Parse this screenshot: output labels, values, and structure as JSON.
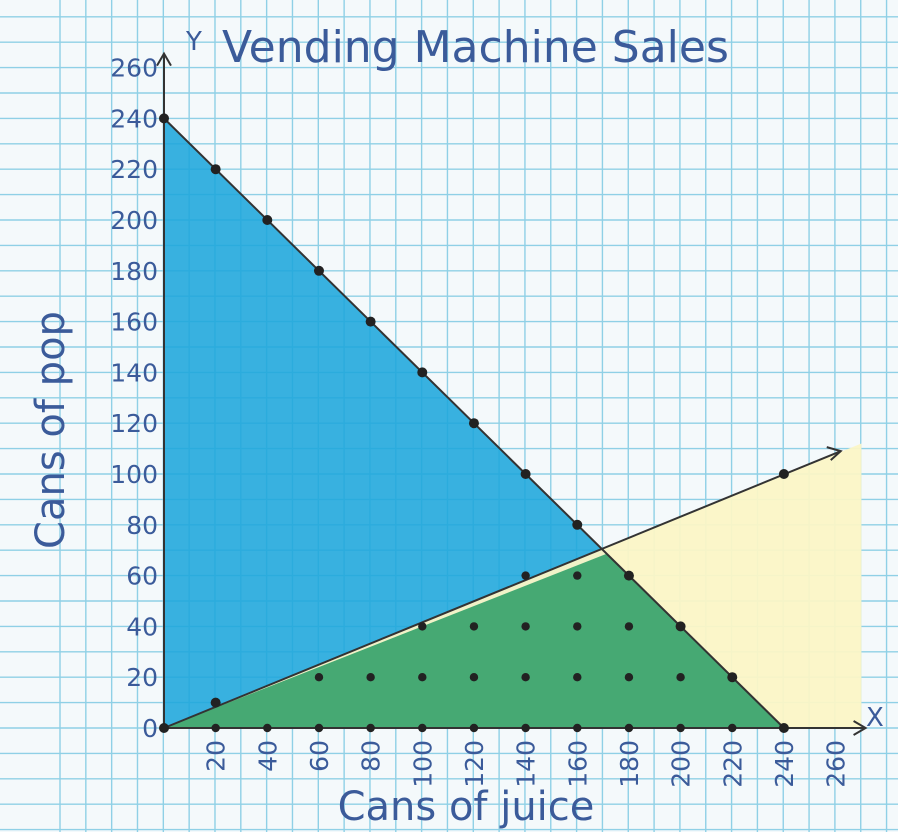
{
  "chart_data": {
    "type": "line",
    "title": "Vending Machine Sales",
    "xlabel": "Cans of juice",
    "ylabel": "Cans of pop",
    "x_axis_letter": "X",
    "y_axis_letter": "Y",
    "xlim": [
      0,
      260
    ],
    "ylim": [
      0,
      260
    ],
    "x_ticks": [
      "20",
      "40",
      "60",
      "80",
      "100",
      "120",
      "140",
      "160",
      "180",
      "200",
      "220",
      "240",
      "260"
    ],
    "y_ticks": [
      "0",
      "20",
      "40",
      "60",
      "80",
      "100",
      "120",
      "140",
      "160",
      "180",
      "200",
      "220",
      "240",
      "260"
    ],
    "grid": true,
    "series": [
      {
        "values": [
          [
            0,
            240
          ],
          [
            20,
            220
          ],
          [
            40,
            200
          ],
          [
            60,
            180
          ],
          [
            80,
            160
          ],
          [
            100,
            140
          ],
          [
            120,
            120
          ],
          [
            140,
            100
          ],
          [
            160,
            80
          ],
          [
            180,
            60
          ],
          [
            200,
            40
          ],
          [
            220,
            20
          ],
          [
            240,
            0
          ]
        ],
        "color": "#333333"
      },
      {
        "values": [
          [
            0,
            0
          ],
          [
            20,
            10
          ],
          [
            240,
            100
          ]
        ],
        "color": "#333333"
      }
    ],
    "regions": [
      {
        "vertices": [
          [
            0,
            0
          ],
          [
            0,
            240
          ],
          [
            240,
            0
          ]
        ],
        "color": "#1ea6dc"
      },
      {
        "vertices": [
          [
            0,
            0
          ],
          [
            270,
            112
          ],
          [
            270,
            0
          ]
        ],
        "color": "#fbf6c6"
      },
      {
        "vertices": [
          [
            0,
            0
          ],
          [
            171.4,
            68.6
          ],
          [
            240,
            0
          ]
        ],
        "color": "#2e9e66"
      }
    ],
    "lattice_points": [
      [
        20,
        0
      ],
      [
        40,
        0
      ],
      [
        60,
        0
      ],
      [
        80,
        0
      ],
      [
        100,
        0
      ],
      [
        120,
        0
      ],
      [
        140,
        0
      ],
      [
        160,
        0
      ],
      [
        180,
        0
      ],
      [
        200,
        0
      ],
      [
        220,
        0
      ],
      [
        60,
        20
      ],
      [
        80,
        20
      ],
      [
        100,
        20
      ],
      [
        120,
        20
      ],
      [
        140,
        20
      ],
      [
        160,
        20
      ],
      [
        180,
        20
      ],
      [
        200,
        20
      ],
      [
        220,
        20
      ],
      [
        100,
        40
      ],
      [
        120,
        40
      ],
      [
        140,
        40
      ],
      [
        160,
        40
      ],
      [
        180,
        40
      ],
      [
        200,
        40
      ],
      [
        140,
        60
      ],
      [
        160,
        60
      ],
      [
        180,
        60
      ]
    ]
  }
}
